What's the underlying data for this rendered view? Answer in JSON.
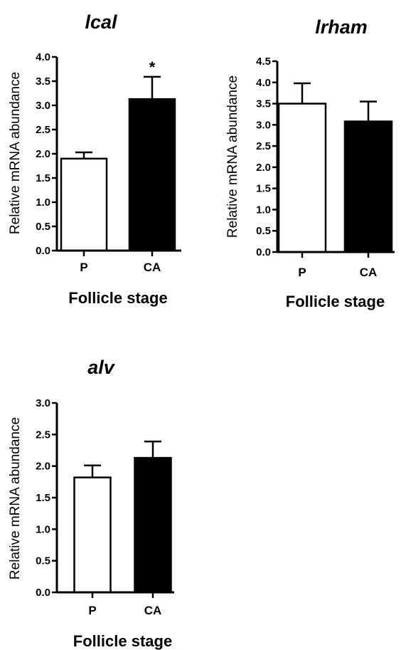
{
  "chart_data": [
    {
      "type": "bar",
      "title": "lcal",
      "xlabel": "Follicle stage",
      "ylabel": "Relative mRNA abundance",
      "categories": [
        "P",
        "CA"
      ],
      "values": [
        1.9,
        3.13
      ],
      "error": [
        0.13,
        0.46
      ],
      "fills": [
        "#ffffff",
        "#000000"
      ],
      "annotations": [
        "",
        "*"
      ],
      "ylim": [
        0,
        4.0
      ],
      "yticks": [
        "0.0",
        "0.5",
        "1.0",
        "1.5",
        "2.0",
        "2.5",
        "3.0",
        "3.5",
        "4.0"
      ],
      "grid": false,
      "legend": "none"
    },
    {
      "type": "bar",
      "title": "lrham",
      "xlabel": "Follicle stage",
      "ylabel": "Relative mRNA abundance",
      "categories": [
        "P",
        "CA"
      ],
      "values": [
        3.5,
        3.08
      ],
      "error": [
        0.48,
        0.47
      ],
      "fills": [
        "#ffffff",
        "#000000"
      ],
      "annotations": [
        "",
        ""
      ],
      "ylim": [
        0,
        4.5
      ],
      "yticks": [
        "0.0",
        "0.5",
        "1.0",
        "1.5",
        "2.0",
        "2.5",
        "3.0",
        "3.5",
        "4.0",
        "4.5"
      ],
      "grid": false,
      "legend": "none"
    },
    {
      "type": "bar",
      "title": "alv",
      "xlabel": "Follicle stage",
      "ylabel": "Relative mRNA abundance",
      "categories": [
        "P",
        "CA"
      ],
      "values": [
        1.82,
        2.13
      ],
      "error": [
        0.19,
        0.26
      ],
      "fills": [
        "#ffffff",
        "#000000"
      ],
      "annotations": [
        "",
        ""
      ],
      "ylim": [
        0,
        3.0
      ],
      "yticks": [
        "0.0",
        "0.5",
        "1.0",
        "1.5",
        "2.0",
        "2.5",
        "3.0"
      ],
      "grid": false,
      "legend": "none"
    }
  ]
}
